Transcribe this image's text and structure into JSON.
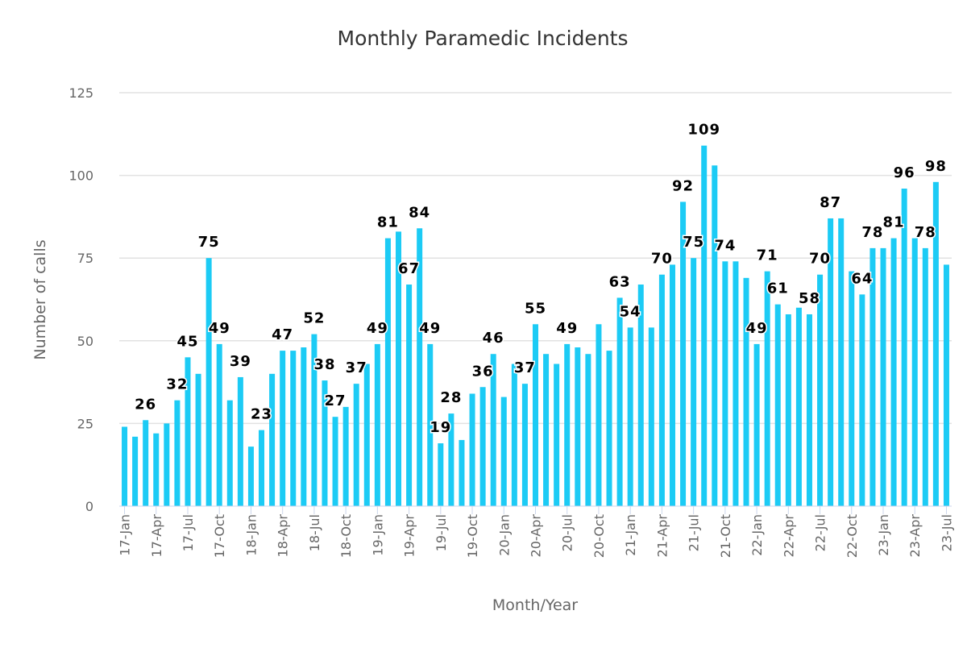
{
  "chart_data": {
    "type": "bar",
    "title": "Monthly Paramedic Incidents",
    "xlabel": "Month/Year",
    "ylabel": "Number of calls",
    "ylim": [
      0,
      125
    ],
    "yticks": [
      0,
      25,
      50,
      75,
      100,
      125
    ],
    "grid": true,
    "legend": "none",
    "color": "#1ccbf5",
    "categories": [
      "17-Jan",
      "17-Feb",
      "17-Mar",
      "17-Apr",
      "17-May",
      "17-Jun",
      "17-Jul",
      "17-Aug",
      "17-Sep",
      "17-Oct",
      "17-Nov",
      "17-Dec",
      "18-Jan",
      "18-Feb",
      "18-Mar",
      "18-Apr",
      "18-May",
      "18-Jun",
      "18-Jul",
      "18-Aug",
      "18-Sep",
      "18-Oct",
      "18-Nov",
      "18-Dec",
      "19-Jan",
      "19-Feb",
      "19-Mar",
      "19-Apr",
      "19-May",
      "19-Jun",
      "19-Jul",
      "19-Aug",
      "19-Sep",
      "19-Oct",
      "19-Nov",
      "19-Dec",
      "20-Jan",
      "20-Feb",
      "20-Mar",
      "20-Apr",
      "20-May",
      "20-Jun",
      "20-Jul",
      "20-Aug",
      "20-Sep",
      "20-Oct",
      "20-Nov",
      "20-Dec",
      "21-Jan",
      "21-Feb",
      "21-Mar",
      "21-Apr",
      "21-May",
      "21-Jun",
      "21-Jul",
      "21-Aug",
      "21-Sep",
      "21-Oct",
      "21-Nov",
      "21-Dec",
      "22-Jan",
      "22-Feb",
      "22-Mar",
      "22-Apr",
      "22-May",
      "22-Jun",
      "22-Jul",
      "22-Aug",
      "22-Sep",
      "22-Oct",
      "22-Nov",
      "22-Dec",
      "23-Jan",
      "23-Feb",
      "23-Mar",
      "23-Apr",
      "23-May",
      "23-Jun",
      "23-Jul"
    ],
    "tick_labels": [
      "17-Jan",
      "17-Apr",
      "17-Jul",
      "17-Oct",
      "18-Jan",
      "18-Apr",
      "18-Jul",
      "18-Oct",
      "19-Jan",
      "19-Apr",
      "19-Jul",
      "19-Oct",
      "20-Jan",
      "20-Apr",
      "20-Jul",
      "20-Oct",
      "21-Jan",
      "21-Apr",
      "21-Jul",
      "21-Oct",
      "22-Jan",
      "22-Apr",
      "22-Jul",
      "22-Oct",
      "23-Jan",
      "23-Apr",
      "23-Jul"
    ],
    "values": [
      24,
      21,
      26,
      22,
      25,
      32,
      45,
      40,
      75,
      49,
      32,
      39,
      18,
      23,
      40,
      47,
      47,
      48,
      52,
      38,
      27,
      30,
      37,
      43,
      49,
      81,
      83,
      67,
      84,
      49,
      19,
      28,
      20,
      34,
      36,
      46,
      33,
      43,
      37,
      55,
      46,
      43,
      49,
      48,
      46,
      55,
      47,
      63,
      54,
      67,
      54,
      70,
      73,
      92,
      75,
      109,
      103,
      74,
      74,
      69,
      49,
      71,
      61,
      58,
      60,
      58,
      70,
      87,
      87,
      71,
      64,
      78,
      78,
      81,
      96,
      81,
      78,
      98,
      73
    ],
    "data_labels_shown_for": [
      "17-Mar",
      "17-Jun",
      "17-Jul",
      "17-Sep",
      "17-Oct",
      "17-Dec",
      "18-Feb",
      "18-Apr",
      "18-Jul",
      "18-Aug",
      "18-Sep",
      "18-Nov",
      "19-Jan",
      "19-Feb",
      "19-Apr",
      "19-May",
      "19-Jun",
      "19-Jul",
      "19-Aug",
      "19-Nov",
      "19-Dec",
      "20-Mar",
      "20-Apr",
      "20-Jul",
      "20-Dec",
      "21-Jan",
      "21-Apr",
      "21-Jun",
      "21-Jul",
      "21-Aug",
      "21-Oct",
      "22-Jan",
      "22-Feb",
      "22-Mar",
      "22-Jun",
      "22-Jul",
      "22-Aug",
      "22-Nov",
      "22-Dec",
      "23-Feb",
      "23-Mar",
      "23-May",
      "23-Jun"
    ]
  }
}
